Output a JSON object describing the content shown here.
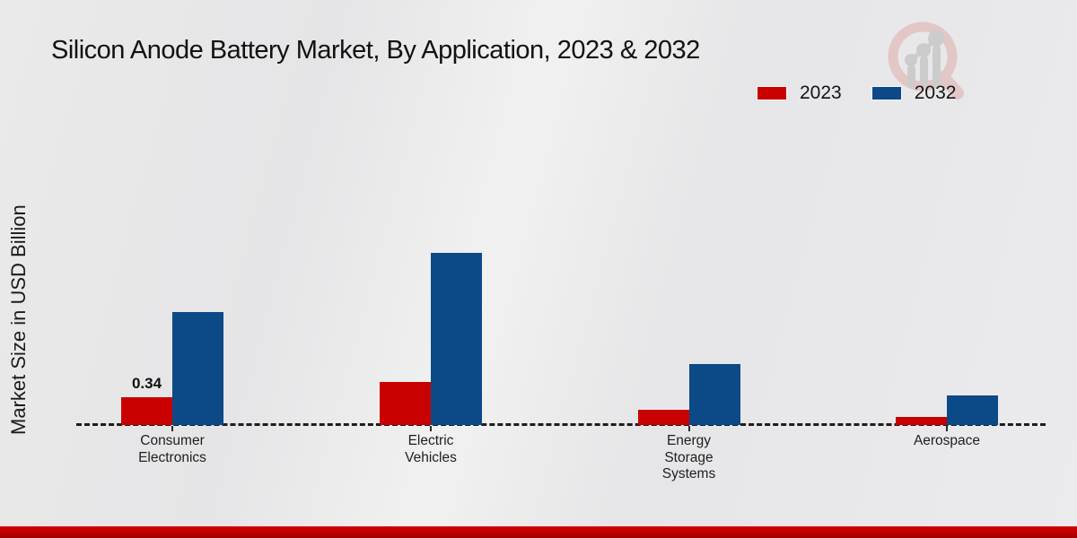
{
  "title": "Silicon Anode Battery Market, By Application, 2023 & 2032",
  "ylabel": "Market Size in USD Billion",
  "legend": [
    {
      "label": "2023",
      "color": "#c80000"
    },
    {
      "label": "2032",
      "color": "#0b4a87"
    }
  ],
  "chart_data": {
    "type": "bar",
    "title": "Silicon Anode Battery Market, By Application, 2023 & 2032",
    "ylabel": "Market Size in USD Billion",
    "categories": [
      "Consumer Electronics",
      "Electric Vehicles",
      "Energy Storage Systems",
      "Aerospace"
    ],
    "series": [
      {
        "name": "2023",
        "color": "#c80000",
        "values": [
          0.34,
          0.53,
          0.19,
          0.1
        ],
        "data_labels": [
          "0.34",
          "",
          "",
          ""
        ]
      },
      {
        "name": "2032",
        "color": "#0b4a87",
        "values": [
          1.39,
          2.11,
          0.75,
          0.36
        ],
        "data_labels": [
          "",
          "",
          "",
          ""
        ]
      }
    ],
    "ylim": [
      0,
      2.5
    ],
    "y_axis_visible": false,
    "gridlines": false,
    "baseline_style": "dashed",
    "legend_position": "top-right"
  },
  "watermark": {
    "name": "market-research-magnifier-logo"
  }
}
